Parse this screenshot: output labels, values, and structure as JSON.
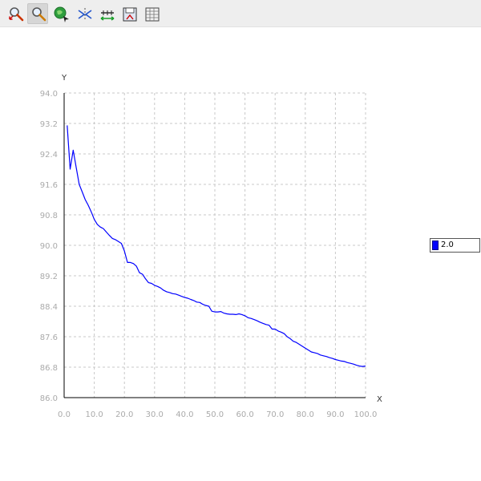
{
  "toolbar": {
    "tools": [
      {
        "icon": "zoom-reset-icon"
      },
      {
        "icon": "zoom-icon",
        "active": true
      },
      {
        "icon": "pan-icon"
      },
      {
        "icon": "select-points-icon"
      },
      {
        "icon": "axis-scale-icon"
      },
      {
        "icon": "save-icon"
      },
      {
        "icon": "data-table-icon"
      }
    ]
  },
  "chart_data": {
    "type": "line",
    "xlabel": "X",
    "ylabel": "Y",
    "xlim": [
      0,
      100
    ],
    "ylim": [
      86.0,
      94.0
    ],
    "xticks": [
      "0.0",
      "10.0",
      "20.0",
      "30.0",
      "40.0",
      "50.0",
      "60.0",
      "70.0",
      "80.0",
      "90.0",
      "100.0"
    ],
    "yticks": [
      "86.0",
      "86.8",
      "87.6",
      "88.4",
      "89.2",
      "90.0",
      "90.8",
      "91.6",
      "92.4",
      "93.2",
      "94.0"
    ],
    "grid": true,
    "legend_position": "right",
    "series": [
      {
        "name": "2.0",
        "color": "#0000ff",
        "x": [
          1,
          2,
          3,
          4,
          5,
          6,
          7,
          8,
          9,
          10,
          11,
          12,
          13,
          14,
          15,
          16,
          17,
          18,
          19,
          20,
          21,
          22,
          23,
          24,
          25,
          26,
          27,
          28,
          29,
          30,
          31,
          32,
          33,
          34,
          35,
          36,
          37,
          38,
          39,
          40,
          41,
          42,
          43,
          44,
          45,
          46,
          47,
          48,
          49,
          50,
          51,
          52,
          53,
          54,
          55,
          56,
          57,
          58,
          59,
          60,
          61,
          62,
          63,
          64,
          65,
          66,
          67,
          68,
          69,
          70,
          71,
          72,
          73,
          74,
          75,
          76,
          77,
          78,
          79,
          80,
          81,
          82,
          83,
          84,
          85,
          86,
          87,
          88,
          89,
          90,
          91,
          92,
          93,
          94,
          95,
          96,
          97,
          98,
          99,
          100
        ],
        "values": [
          93.15,
          92.0,
          92.5,
          92.05,
          91.6,
          91.4,
          91.2,
          91.05,
          90.88,
          90.68,
          90.55,
          90.48,
          90.44,
          90.35,
          90.26,
          90.18,
          90.15,
          90.1,
          90.05,
          89.85,
          89.55,
          89.55,
          89.52,
          89.45,
          89.28,
          89.24,
          89.12,
          89.02,
          89.0,
          88.95,
          88.92,
          88.88,
          88.82,
          88.78,
          88.76,
          88.73,
          88.72,
          88.69,
          88.66,
          88.63,
          88.61,
          88.58,
          88.55,
          88.51,
          88.5,
          88.45,
          88.42,
          88.4,
          88.27,
          88.25,
          88.25,
          88.26,
          88.22,
          88.2,
          88.19,
          88.19,
          88.18,
          88.2,
          88.18,
          88.15,
          88.1,
          88.08,
          88.05,
          88.02,
          87.98,
          87.95,
          87.92,
          87.9,
          87.8,
          87.8,
          87.75,
          87.72,
          87.68,
          87.6,
          87.55,
          87.48,
          87.45,
          87.4,
          87.35,
          87.3,
          87.25,
          87.2,
          87.18,
          87.16,
          87.12,
          87.1,
          87.08,
          87.05,
          87.03,
          87.0,
          86.98,
          86.96,
          86.95,
          86.92,
          86.9,
          86.88,
          86.85,
          86.83,
          86.82,
          86.83
        ]
      }
    ]
  }
}
